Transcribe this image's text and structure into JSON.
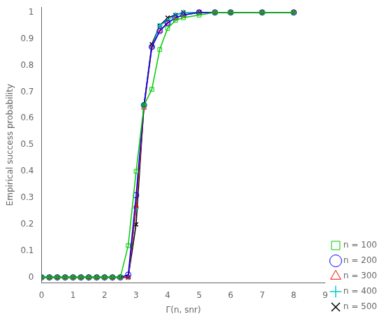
{
  "chart_data": {
    "type": "line",
    "xlabel": "Γ(n, snr)",
    "ylabel": "Empirical success probability",
    "x": [
      0,
      0.25,
      0.5,
      0.75,
      1.0,
      1.25,
      1.5,
      1.75,
      2.0,
      2.25,
      2.5,
      2.75,
      3.0,
      3.25,
      3.5,
      3.75,
      4.0,
      4.25,
      4.5,
      5.0,
      5.5,
      6.0,
      7.0,
      8.0
    ],
    "xlim": [
      0,
      9
    ],
    "xticks": [
      0,
      1,
      2,
      3,
      4,
      5,
      6,
      7,
      8,
      9
    ],
    "ylim": [
      -0.02,
      1.02
    ],
    "yticks": [
      0,
      0.1,
      0.2,
      0.3,
      0.4,
      0.5,
      0.6,
      0.7,
      0.8,
      0.9,
      1
    ],
    "grid": false,
    "legend": "lower right",
    "series": [
      {
        "name": "n = 100",
        "color": "#00cc00",
        "marker": "square",
        "values": [
          0.0,
          0.0,
          0.0,
          0.0,
          0.0,
          0.0,
          0.0,
          0.0,
          0.0,
          0.0,
          0.0,
          0.12,
          0.4,
          0.65,
          0.71,
          0.86,
          0.94,
          0.97,
          0.98,
          0.99,
          1.0,
          1.0,
          1.0,
          1.0
        ]
      },
      {
        "name": "n = 200",
        "color": "#0000ff",
        "marker": "circle",
        "values": [
          0.0,
          0.0,
          0.0,
          0.0,
          0.0,
          0.0,
          0.0,
          0.0,
          0.0,
          0.0,
          0.0,
          0.01,
          0.31,
          0.65,
          0.87,
          0.93,
          0.96,
          0.98,
          0.99,
          1.0,
          1.0,
          1.0,
          1.0,
          1.0
        ]
      },
      {
        "name": "n = 300",
        "color": "#ff0000",
        "marker": "triangle",
        "values": [
          0.0,
          0.0,
          0.0,
          0.0,
          0.0,
          0.0,
          0.0,
          0.0,
          0.0,
          0.0,
          0.0,
          0.0,
          0.27,
          0.64,
          0.87,
          0.93,
          0.96,
          0.98,
          0.99,
          1.0,
          1.0,
          1.0,
          1.0,
          1.0
        ]
      },
      {
        "name": "n = 400",
        "color": "#00cccc",
        "marker": "plus",
        "values": [
          0.0,
          0.0,
          0.0,
          0.0,
          0.0,
          0.0,
          0.0,
          0.0,
          0.0,
          0.0,
          0.0,
          0.0,
          0.26,
          0.65,
          0.87,
          0.95,
          0.97,
          0.99,
          1.0,
          1.0,
          1.0,
          1.0,
          1.0,
          1.0
        ]
      },
      {
        "name": "n = 500",
        "color": "#000000",
        "marker": "cross",
        "values": [
          0.0,
          0.0,
          0.0,
          0.0,
          0.0,
          0.0,
          0.0,
          0.0,
          0.0,
          0.0,
          0.0,
          0.0,
          0.2,
          0.65,
          0.88,
          0.95,
          0.98,
          0.99,
          1.0,
          1.0,
          1.0,
          1.0,
          1.0,
          1.0
        ]
      }
    ]
  }
}
